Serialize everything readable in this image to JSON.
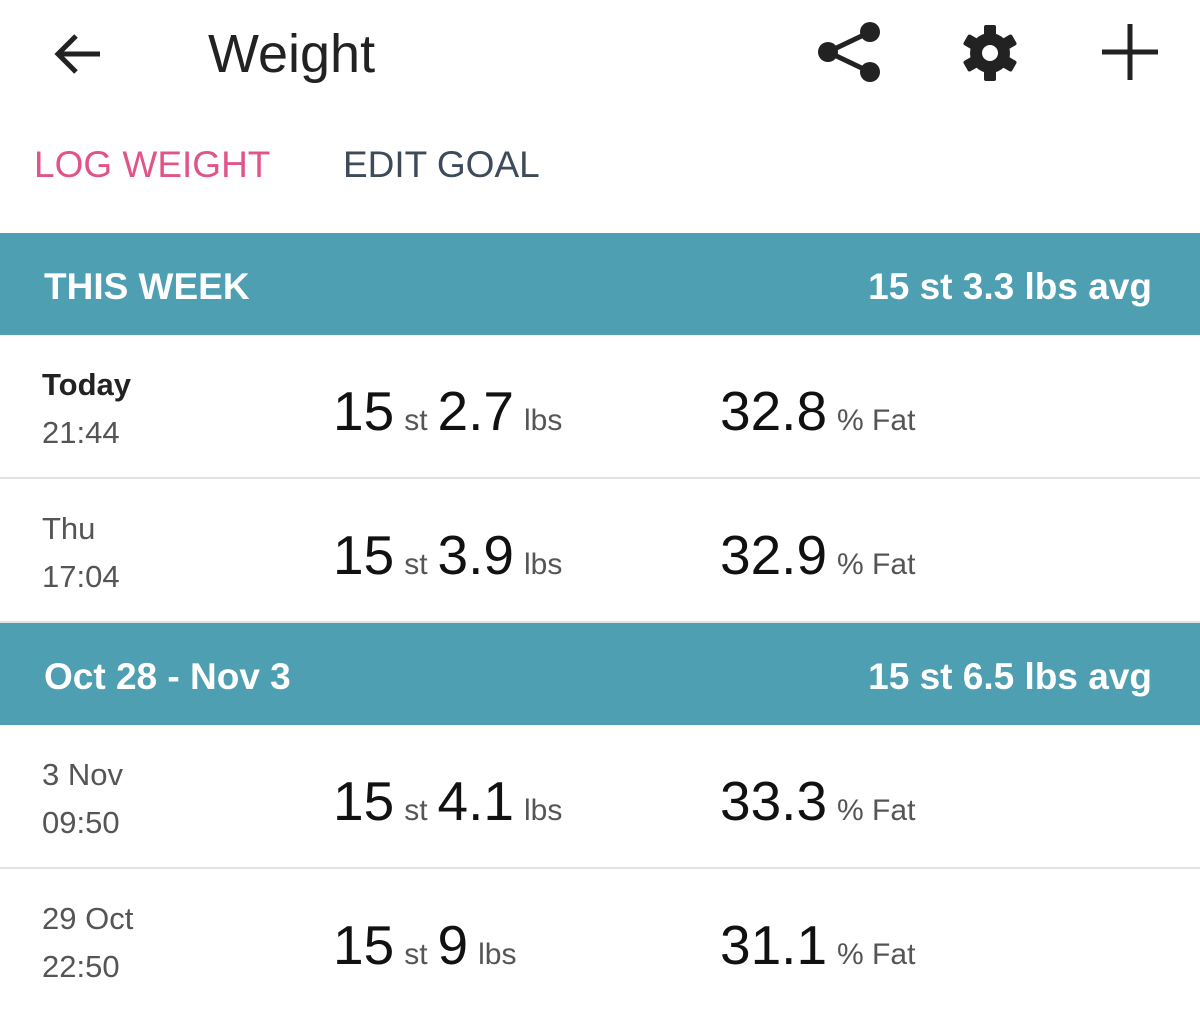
{
  "header": {
    "title": "Weight"
  },
  "tabs": [
    "LOG WEIGHT",
    "EDIT GOAL"
  ],
  "sections": [
    {
      "title": "THIS WEEK",
      "average": "15 st 3.3 lbs avg",
      "entries": [
        {
          "day": "Today",
          "time": "21:44",
          "stones": "15",
          "stone_unit": "st",
          "pounds": "2.7",
          "pound_unit": "lbs",
          "fat": "32.8",
          "fat_unit": "% Fat"
        },
        {
          "day": "Thu",
          "time": "17:04",
          "stones": "15",
          "stone_unit": "st",
          "pounds": "3.9",
          "pound_unit": "lbs",
          "fat": "32.9",
          "fat_unit": "% Fat"
        }
      ]
    },
    {
      "title": "Oct 28 - Nov 3",
      "average": "15 st 6.5 lbs avg",
      "entries": [
        {
          "day": "3 Nov",
          "time": "09:50",
          "stones": "15",
          "stone_unit": "st",
          "pounds": "4.1",
          "pound_unit": "lbs",
          "fat": "33.3",
          "fat_unit": "% Fat"
        },
        {
          "day": "29 Oct",
          "time": "22:50",
          "stones": "15",
          "stone_unit": "st",
          "pounds": "9",
          "pound_unit": "lbs",
          "fat": "31.1",
          "fat_unit": "% Fat"
        }
      ]
    }
  ]
}
